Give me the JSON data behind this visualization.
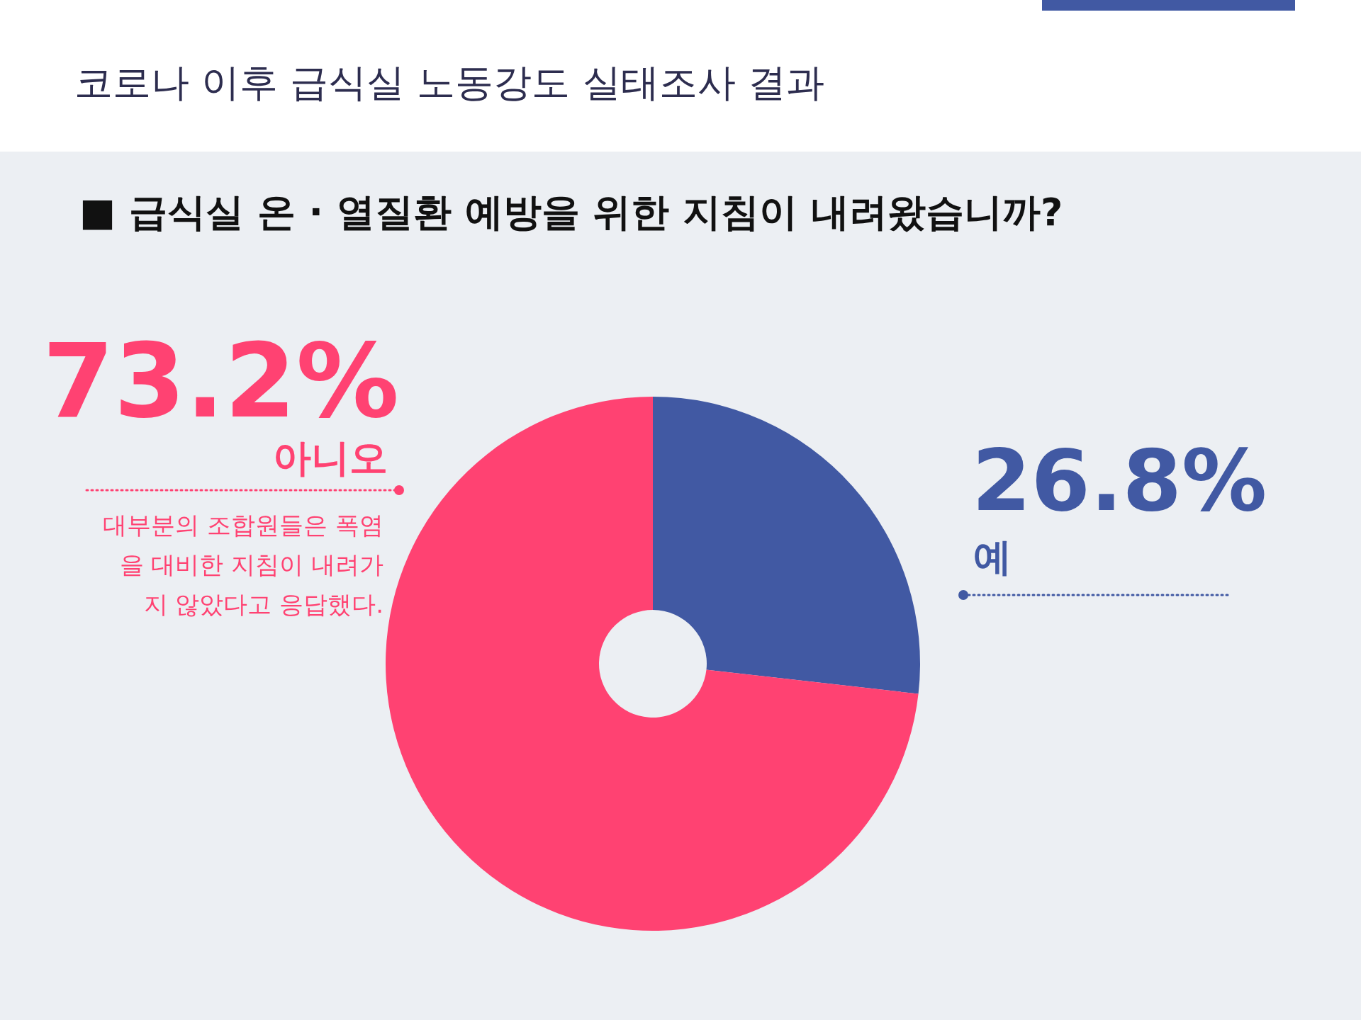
{
  "chart_data": {
    "type": "donut",
    "title": "코로나 이후 급식실 노동강도 실태조사 결과",
    "subtitle": "■ 급식실 온 · 열질환 예방을 위한 지침이 내려왔습니까?",
    "categories": [
      "예",
      "아니오"
    ],
    "values": [
      26.8,
      73.2
    ],
    "colors": [
      "#4159a3",
      "#ff4272"
    ],
    "value_labels": [
      "26.8%",
      "73.2%"
    ],
    "annotations": [
      "대부분의 조합원들은 폭염을 대비한 지침이 내려가지 않았다고 응답했다."
    ]
  }
}
